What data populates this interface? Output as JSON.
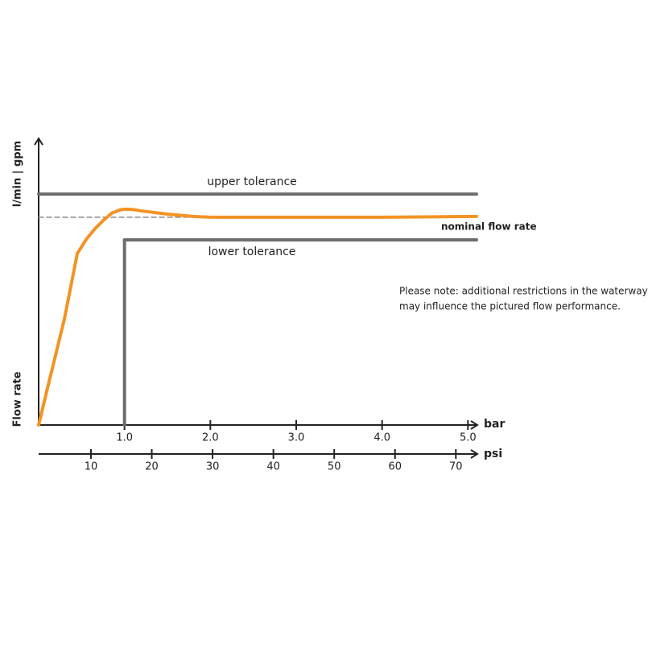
{
  "chart_data": {
    "type": "line",
    "y_label_top": "l/min | gpm",
    "y_label_bottom": "Flow rate",
    "x_label": "bar",
    "x2_label": "psi",
    "xlim": [
      0,
      5.1
    ],
    "xticks": [
      {
        "value": 1,
        "label": "1.0"
      },
      {
        "value": 2,
        "label": "2.0"
      },
      {
        "value": 3,
        "label": "3.0"
      },
      {
        "value": 4,
        "label": "4.0"
      },
      {
        "value": 5,
        "label": "5.0"
      }
    ],
    "x2lim": [
      1.4,
      73.4
    ],
    "x2ticks": [
      10,
      20,
      30,
      40,
      50,
      60,
      70
    ],
    "ylim": [
      0,
      100
    ],
    "series": [
      {
        "name": "upper tolerance",
        "color": "#6d6d6d",
        "x": [
          0,
          5.1
        ],
        "values": [
          80.6,
          80.6
        ]
      },
      {
        "name": "nominal flow rate",
        "color": "#8a8a8a",
        "dashed": true,
        "x": [
          0,
          4.6
        ],
        "values": [
          72.5,
          72.5
        ]
      },
      {
        "name": "lower tolerance",
        "color": "#6d6d6d",
        "x": [
          1.0,
          1.0,
          5.1
        ],
        "values": [
          0,
          64.6,
          64.6
        ]
      },
      {
        "color": "#f39325",
        "x": [
          0,
          0.1,
          0.2,
          0.3,
          0.45,
          0.55,
          0.65,
          0.75,
          0.85,
          0.95,
          1.0,
          1.1,
          1.2,
          1.5,
          1.8,
          2.0,
          3.0,
          4.0,
          5.1
        ],
        "values": [
          0,
          12.5,
          24.7,
          37,
          59.8,
          64.6,
          68.3,
          71.3,
          73.9,
          75.1,
          75.3,
          75.2,
          74.7,
          73.6,
          72.8,
          72.5,
          72.5,
          72.5,
          72.8
        ]
      }
    ],
    "note": [
      "Please note: additional restrictions in the waterway",
      "may influence the pictured flow performance."
    ]
  }
}
